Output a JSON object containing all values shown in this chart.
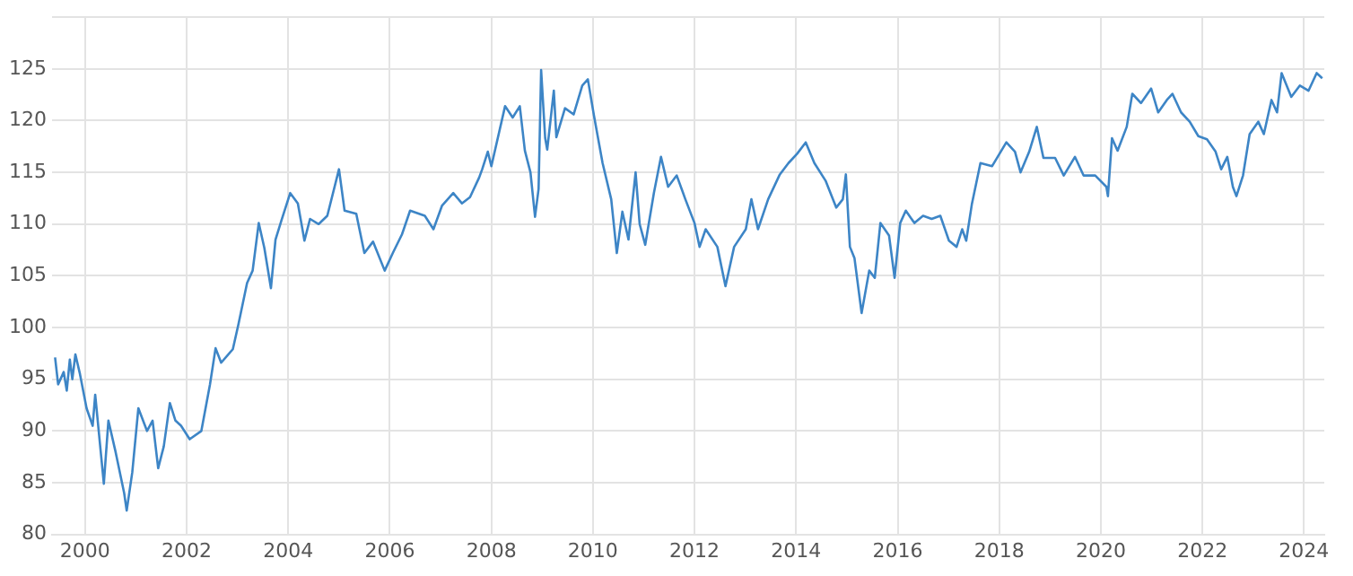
{
  "chart_data": {
    "type": "line",
    "xlim": [
      1999.35,
      2024.4
    ],
    "ylim": [
      80,
      130
    ],
    "xticks": [
      2000,
      2002,
      2004,
      2006,
      2008,
      2010,
      2012,
      2014,
      2016,
      2018,
      2020,
      2022,
      2024
    ],
    "yticks": [
      80,
      85,
      90,
      95,
      100,
      105,
      110,
      115,
      120,
      125,
      {
        "value": 130,
        "label": null
      }
    ],
    "grid": true,
    "legend": false,
    "marker": "none",
    "line_style": "solid",
    "series": [
      {
        "color": "#3d85c6",
        "x": [
          1999.41,
          1999.47,
          1999.58,
          1999.64,
          1999.7,
          1999.75,
          1999.81,
          1999.9,
          2000.03,
          2000.15,
          2000.2,
          2000.37,
          2000.46,
          2000.6,
          2000.77,
          2000.82,
          2000.93,
          2001.05,
          2001.22,
          2001.33,
          2001.44,
          2001.55,
          2001.67,
          2001.78,
          2001.89,
          2002.06,
          2002.29,
          2002.46,
          2002.57,
          2002.68,
          2002.91,
          2003.02,
          2003.19,
          2003.3,
          2003.42,
          2003.53,
          2003.66,
          2003.75,
          2003.87,
          2004.04,
          2004.19,
          2004.32,
          2004.43,
          2004.6,
          2004.77,
          2005.0,
          2005.11,
          2005.34,
          2005.5,
          2005.67,
          2005.9,
          2006.06,
          2006.24,
          2006.4,
          2006.69,
          2006.86,
          2007.03,
          2007.25,
          2007.42,
          2007.58,
          2007.76,
          2007.82,
          2007.93,
          2008.0,
          2008.27,
          2008.42,
          2008.56,
          2008.66,
          2008.77,
          2008.86,
          2008.93,
          2008.98,
          2009.06,
          2009.1,
          2009.23,
          2009.28,
          2009.45,
          2009.62,
          2009.79,
          2009.9,
          2010.02,
          2010.19,
          2010.36,
          2010.47,
          2010.58,
          2010.7,
          2010.84,
          2010.92,
          2011.03,
          2011.2,
          2011.34,
          2011.48,
          2011.65,
          2011.82,
          2012.0,
          2012.1,
          2012.22,
          2012.45,
          2012.61,
          2012.78,
          2013.01,
          2013.12,
          2013.25,
          2013.45,
          2013.68,
          2013.85,
          2014.02,
          2014.19,
          2014.36,
          2014.58,
          2014.79,
          2014.92,
          2014.98,
          2015.06,
          2015.15,
          2015.29,
          2015.44,
          2015.55,
          2015.66,
          2015.83,
          2015.94,
          2016.05,
          2016.16,
          2016.33,
          2016.5,
          2016.67,
          2016.84,
          2017.01,
          2017.16,
          2017.27,
          2017.35,
          2017.46,
          2017.63,
          2017.86,
          2018.14,
          2018.31,
          2018.42,
          2018.59,
          2018.74,
          2018.87,
          2019.1,
          2019.27,
          2019.49,
          2019.66,
          2019.89,
          2020.11,
          2020.14,
          2020.22,
          2020.33,
          2020.51,
          2020.62,
          2020.79,
          2020.99,
          2021.13,
          2021.3,
          2021.41,
          2021.58,
          2021.75,
          2021.92,
          2022.09,
          2022.26,
          2022.37,
          2022.49,
          2022.6,
          2022.67,
          2022.8,
          2022.93,
          2023.1,
          2023.21,
          2023.36,
          2023.47,
          2023.56,
          2023.75,
          2023.92,
          2024.09,
          2024.25,
          2024.36
        ],
        "values": [
          97.1,
          94.5,
          95.7,
          93.9,
          96.9,
          95,
          97.4,
          95.5,
          92.2,
          90.5,
          93.5,
          84.9,
          91,
          88,
          84,
          82.3,
          86,
          92.2,
          90,
          91,
          86.4,
          88.5,
          92.7,
          91,
          90.5,
          89.2,
          90,
          94.5,
          98,
          96.6,
          97.9,
          100.3,
          104.3,
          105.5,
          110.1,
          107.7,
          103.8,
          108.5,
          110.4,
          113,
          112,
          108.4,
          110.5,
          110,
          110.8,
          115.3,
          111.3,
          111,
          107.2,
          108.3,
          105.5,
          107.2,
          109,
          111.3,
          110.8,
          109.5,
          111.8,
          113,
          112,
          112.6,
          114.5,
          115.3,
          117,
          115.6,
          121.4,
          120.3,
          121.4,
          117.1,
          115,
          110.7,
          113.4,
          124.9,
          118.3,
          117.2,
          122.9,
          118.4,
          121.2,
          120.6,
          123.4,
          124,
          120.5,
          115.9,
          112.4,
          107.2,
          111.2,
          108.5,
          115,
          110,
          108,
          113,
          116.5,
          113.6,
          114.7,
          112.4,
          110.1,
          107.8,
          109.5,
          107.8,
          104,
          107.8,
          109.5,
          112.4,
          109.5,
          112.4,
          114.8,
          115.9,
          116.8,
          117.9,
          115.9,
          114.2,
          111.6,
          112.4,
          114.8,
          107.8,
          106.7,
          101.4,
          105.5,
          104.8,
          110.1,
          108.9,
          104.8,
          110.1,
          111.3,
          110.1,
          110.8,
          110.5,
          110.8,
          108.4,
          107.8,
          109.5,
          108.4,
          111.9,
          115.9,
          115.6,
          117.9,
          117,
          115,
          117,
          119.4,
          116.4,
          116.4,
          114.7,
          116.5,
          114.7,
          114.7,
          113.6,
          112.7,
          118.3,
          117.1,
          119.4,
          122.6,
          121.7,
          123.1,
          120.8,
          122,
          122.6,
          120.8,
          119.9,
          118.5,
          118.2,
          117,
          115.3,
          116.5,
          113.6,
          112.7,
          114.7,
          118.7,
          119.9,
          118.7,
          122,
          120.8,
          124.6,
          122.3,
          123.4,
          122.9,
          124.6,
          124.1
        ]
      }
    ]
  }
}
